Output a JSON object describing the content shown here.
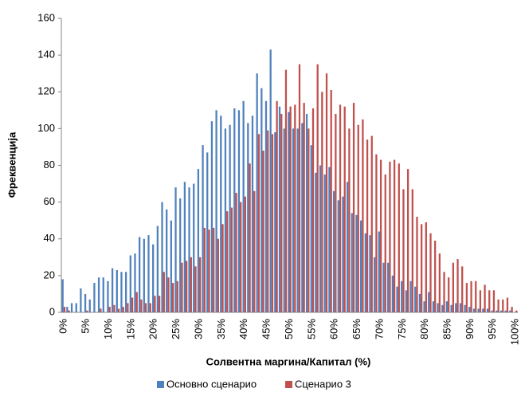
{
  "chart_data": {
    "type": "bar",
    "x_label": "Солвентна маргина/Капитал  (%)",
    "y_label": "Фреквенција",
    "categories": [
      "0%",
      null,
      null,
      null,
      null,
      "5%",
      null,
      null,
      null,
      null,
      "10%",
      null,
      null,
      null,
      null,
      "15%",
      null,
      null,
      null,
      null,
      "20%",
      null,
      null,
      null,
      null,
      "25%",
      null,
      null,
      null,
      null,
      "30%",
      null,
      null,
      null,
      null,
      "35%",
      null,
      null,
      null,
      null,
      "40%",
      null,
      null,
      null,
      null,
      "45%",
      null,
      null,
      null,
      null,
      "50%",
      null,
      null,
      null,
      null,
      "55%",
      null,
      null,
      null,
      null,
      "60%",
      null,
      null,
      null,
      null,
      "65%",
      null,
      null,
      null,
      null,
      "70%",
      null,
      null,
      null,
      null,
      "75%",
      null,
      null,
      null,
      null,
      "80%",
      null,
      null,
      null,
      null,
      "85%",
      null,
      null,
      null,
      null,
      "90%",
      null,
      null,
      null,
      null,
      "95%",
      null,
      null,
      null,
      null,
      "100%"
    ],
    "series": [
      {
        "name": "Основно сценарио",
        "color": "#4f81bd",
        "values": [
          18,
          3,
          5,
          5,
          13,
          10,
          7,
          16,
          19,
          19,
          17,
          24,
          23,
          22,
          22,
          31,
          32,
          41,
          40,
          42,
          37,
          47,
          60,
          56,
          50,
          68,
          62,
          71,
          68,
          70,
          78,
          91,
          87,
          104,
          110,
          107,
          100,
          102,
          111,
          110,
          115,
          103,
          107,
          130,
          122,
          115,
          143,
          98,
          112,
          100,
          109,
          100,
          100,
          103,
          108,
          91,
          76,
          80,
          75,
          79,
          66,
          61,
          63,
          71,
          54,
          53,
          50,
          43,
          42,
          30,
          44,
          27,
          27,
          20,
          14,
          17,
          12,
          17,
          14,
          10,
          6,
          11,
          6,
          5,
          4,
          6,
          4,
          5,
          5,
          4,
          3,
          2,
          2,
          2,
          2,
          1,
          1,
          1,
          1,
          1,
          0
        ]
      },
      {
        "name": "Сценарио 3",
        "color": "#c0504d",
        "values": [
          3,
          1,
          0,
          0,
          0,
          1,
          0,
          0,
          2,
          0,
          3,
          4,
          2,
          3,
          5,
          8,
          11,
          7,
          5,
          5,
          9,
          9,
          22,
          19,
          16,
          17,
          27,
          28,
          30,
          25,
          30,
          46,
          45,
          46,
          40,
          48,
          55,
          57,
          65,
          60,
          63,
          81,
          66,
          97,
          88,
          99,
          97,
          115,
          108,
          132,
          112,
          113,
          135,
          114,
          100,
          111,
          135,
          120,
          130,
          121,
          108,
          113,
          112,
          100,
          114,
          102,
          105,
          94,
          96,
          86,
          83,
          75,
          82,
          83,
          81,
          67,
          78,
          67,
          52,
          48,
          49,
          43,
          39,
          32,
          22,
          19,
          27,
          29,
          25,
          16,
          17,
          17,
          12,
          15,
          12,
          12,
          7,
          7,
          8,
          3,
          1
        ]
      }
    ],
    "ylim": [
      0,
      160
    ],
    "yticks": [
      0,
      20,
      40,
      60,
      80,
      100,
      120,
      140,
      160
    ],
    "grid": false,
    "legend": "bottom"
  }
}
